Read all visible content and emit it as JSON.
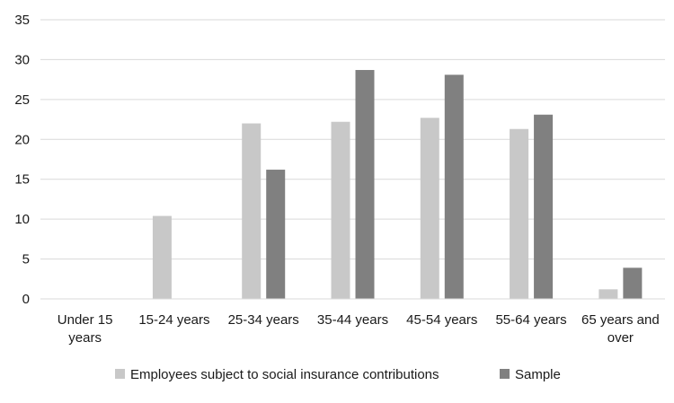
{
  "chart_data": {
    "type": "bar",
    "title": "",
    "xlabel": "",
    "ylabel": "",
    "ylim": [
      0,
      35
    ],
    "yticks": [
      0,
      5,
      10,
      15,
      20,
      25,
      30,
      35
    ],
    "grid": "horizontal",
    "legend_position": "bottom",
    "categories": [
      [
        "Under 15",
        "years"
      ],
      [
        "15-24 years"
      ],
      [
        "25-34 years"
      ],
      [
        "35-44 years"
      ],
      [
        "45-54 years"
      ],
      [
        "55-64 years"
      ],
      [
        "65 years and",
        "over"
      ]
    ],
    "series": [
      {
        "name": "Employees subject to social insurance contributions",
        "color": "#c8c8c8",
        "values": [
          0,
          10.4,
          22.0,
          22.2,
          22.7,
          21.3,
          1.2
        ]
      },
      {
        "name": "Sample",
        "color": "#808080",
        "values": [
          0,
          0,
          16.2,
          28.7,
          28.1,
          23.1,
          3.9
        ]
      }
    ]
  }
}
